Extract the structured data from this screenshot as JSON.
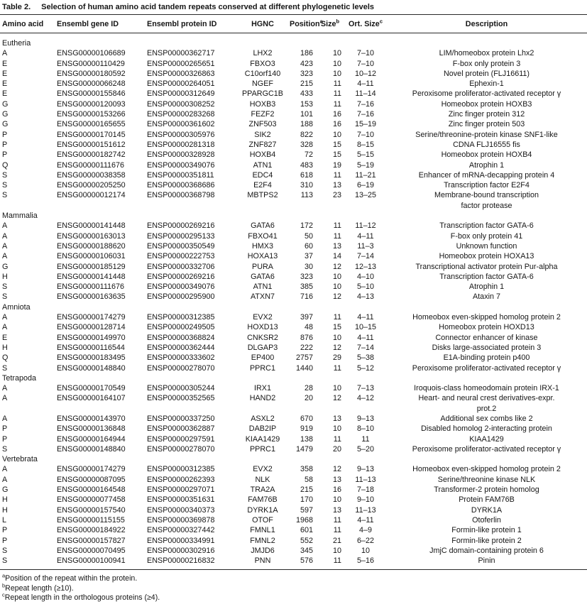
{
  "title": {
    "label": "Table 2.",
    "text": "Selection of human amino acid tandem repeats conserved at different phylogenetic levels"
  },
  "table": {
    "columns": [
      {
        "id": "amino-acid",
        "label": "Amino acid",
        "sup": ""
      },
      {
        "id": "gene-id",
        "label": "Ensembl gene ID",
        "sup": ""
      },
      {
        "id": "protein-id",
        "label": "Ensembl protein ID",
        "sup": ""
      },
      {
        "id": "hgnc",
        "label": "HGNC",
        "sup": ""
      },
      {
        "id": "position",
        "label": "Position",
        "sup": "a"
      },
      {
        "id": "size",
        "label": "Size",
        "sup": "b"
      },
      {
        "id": "ort-size",
        "label": "Ort. Size",
        "sup": "c"
      },
      {
        "id": "description",
        "label": "Description",
        "sup": ""
      }
    ],
    "sections": [
      {
        "name": "Eutheria",
        "rows": [
          [
            "A",
            "ENSG00000106689",
            "ENSP00000362717",
            "LHX2",
            "186",
            "10",
            "7–10",
            "LIM/homeobox protein Lhx2"
          ],
          [
            "E",
            "ENSG00000110429",
            "ENSP00000265651",
            "FBXO3",
            "423",
            "10",
            "7–10",
            "F-box only protein 3"
          ],
          [
            "E",
            "ENSG00000180592",
            "ENSP00000326863",
            "C10orf140",
            "323",
            "10",
            "10–12",
            "Novel protein (FLJ16611)"
          ],
          [
            "E",
            "ENSG00000066248",
            "ENSP00000264051",
            "NGEF",
            "215",
            "11",
            "4–11",
            "Ephexin-1"
          ],
          [
            "E",
            "ENSG00000155846",
            "ENSP00000312649",
            "PPARGC1B",
            "433",
            "11",
            "11–14",
            "Peroxisome proliferator-activated receptor γ"
          ],
          [
            "G",
            "ENSG00000120093",
            "ENSP00000308252",
            "HOXB3",
            "153",
            "11",
            "7–16",
            "Homeobox protein HOXB3"
          ],
          [
            "G",
            "ENSG00000153266",
            "ENSP00000283268",
            "FEZF2",
            "101",
            "16",
            "7–16",
            "Zinc finger protein 312"
          ],
          [
            "G",
            "ENSG00000165655",
            "ENSP00000361602",
            "ZNF503",
            "188",
            "16",
            "15–19",
            "Zinc finger protein 503"
          ],
          [
            "P",
            "ENSG00000170145",
            "ENSP00000305976",
            "SIK2",
            "822",
            "10",
            "7–10",
            "Serine/threonine-protein kinase SNF1-like"
          ],
          [
            "P",
            "ENSG00000151612",
            "ENSP00000281318",
            "ZNF827",
            "328",
            "15",
            "8–15",
            "CDNA FLJ16555 fis"
          ],
          [
            "P",
            "ENSG00000182742",
            "ENSP00000328928",
            "HOXB4",
            "72",
            "15",
            "5–15",
            "Homeobox protein HOXB4"
          ],
          [
            "Q",
            "ENSG00000111676",
            "ENSP00000349076",
            "ATN1",
            "483",
            "19",
            "5–19",
            "Atrophin 1"
          ],
          [
            "S",
            "ENSG00000038358",
            "ENSP00000351811",
            "EDC4",
            "618",
            "11",
            "11–21",
            "Enhancer of mRNA-decapping protein 4"
          ],
          [
            "S",
            "ENSG00000205250",
            "ENSP00000368686",
            "E2F4",
            "310",
            "13",
            "6–19",
            "Transcription factor E2F4"
          ],
          [
            "S",
            "ENSG00000012174",
            "ENSP00000368798",
            "MBTPS2",
            "113",
            "23",
            "13–25",
            "Membrane-bound transcription\nfactor protease"
          ]
        ]
      },
      {
        "name": "Mammalia",
        "rows": [
          [
            "A",
            "ENSG00000141448",
            "ENSP00000269216",
            "GATA6",
            "172",
            "11",
            "11–12",
            "Transcription factor GATA-6"
          ],
          [
            "A",
            "ENSG00000163013",
            "ENSP00000295133",
            "FBXO41",
            "50",
            "11",
            "4–11",
            "F-box only protein 41"
          ],
          [
            "A",
            "ENSG00000188620",
            "ENSP00000350549",
            "HMX3",
            "60",
            "13",
            "11–3",
            "Unknown function"
          ],
          [
            "A",
            "ENSG00000106031",
            "ENSP00000222753",
            "HOXA13",
            "37",
            "14",
            "7–14",
            "Homeobox protein HOXA13"
          ],
          [
            "G",
            "ENSG00000185129",
            "ENSP00000332706",
            "PURA",
            "30",
            "12",
            "12–13",
            "Transcriptional activator protein Pur-alpha"
          ],
          [
            "H",
            "ENSG00000141448",
            "ENSP00000269216",
            "GATA6",
            "323",
            "10",
            "4–10",
            "Transcription factor GATA-6"
          ],
          [
            "S",
            "ENSG00000111676",
            "ENSP00000349076",
            "ATN1",
            "385",
            "10",
            "5–10",
            "Atrophin 1"
          ],
          [
            "S",
            "ENSG00000163635",
            "ENSP00000295900",
            "ATXN7",
            "716",
            "12",
            "4–13",
            "Ataxin 7"
          ]
        ]
      },
      {
        "name": "Amniota",
        "rows": [
          [
            "A",
            "ENSG00000174279",
            "ENSP00000312385",
            "EVX2",
            "397",
            "11",
            "4–11",
            "Homeobox even-skipped homolog protein 2"
          ],
          [
            "A",
            "ENSG00000128714",
            "ENSP00000249505",
            "HOXD13",
            "48",
            "15",
            "10–15",
            "Homeobox protein HOXD13"
          ],
          [
            "E",
            "ENSG00000149970",
            "ENSP00000368824",
            "CNKSR2",
            "876",
            "10",
            "4–11",
            "Connector enhancer of kinase"
          ],
          [
            "H",
            "ENSG00000116544",
            "ENSP00000362444",
            "DLGAP3",
            "222",
            "12",
            "7–14",
            "Disks large-associated protein 3"
          ],
          [
            "Q",
            "ENSG00000183495",
            "ENSP00000333602",
            "EP400",
            "2757",
            "29",
            "5–38",
            "E1A-binding protein p400"
          ],
          [
            "S",
            "ENSG00000148840",
            "ENSP00000278070",
            "PPRC1",
            "1440",
            "11",
            "5–12",
            "Peroxisome proliferator-activated receptor γ"
          ]
        ]
      },
      {
        "name": "Tetrapoda",
        "rows": [
          [
            "A",
            "ENSG00000170549",
            "ENSP00000305244",
            "IRX1",
            "28",
            "10",
            "7–13",
            "Iroquois-class homeodomain protein IRX-1"
          ],
          [
            "A",
            "ENSG00000164107",
            "ENSP00000352565",
            "HAND2",
            "20",
            "12",
            "4–12",
            "Heart- and neural crest derivatives-expr.\nprot.2"
          ],
          [
            "A",
            "ENSG00000143970",
            "ENSP00000337250",
            "ASXL2",
            "670",
            "13",
            "9–13",
            "Additional sex combs like 2"
          ],
          [
            "P",
            "ENSG00000136848",
            "ENSP00000362887",
            "DAB2IP",
            "919",
            "10",
            "8–10",
            "Disabled homolog 2-interacting protein"
          ],
          [
            "P",
            "ENSG00000164944",
            "ENSP00000297591",
            "KIAA1429",
            "138",
            "11",
            "11",
            "KIAA1429"
          ],
          [
            "S",
            "ENSG00000148840",
            "ENSP00000278070",
            "PPRC1",
            "1479",
            "20",
            "5–20",
            "Peroxisome proliferator-activated receptor γ"
          ]
        ]
      },
      {
        "name": "Vertebrata",
        "rows": [
          [
            "A",
            "ENSG00000174279",
            "ENSP00000312385",
            "EVX2",
            "358",
            "12",
            "9–13",
            "Homeobox even-skipped homolog protein 2"
          ],
          [
            "A",
            "ENSG00000087095",
            "ENSP00000262393",
            "NLK",
            "58",
            "13",
            "11–13",
            "Serine/threonine kinase NLK"
          ],
          [
            "G",
            "ENSG00000164548",
            "ENSP00000297071",
            "TRA2A",
            "215",
            "16",
            "7–18",
            "Transformer-2 protein homolog"
          ],
          [
            "H",
            "ENSG00000077458",
            "ENSP00000351631",
            "FAM76B",
            "170",
            "10",
            "9–10",
            "Protein FAM76B"
          ],
          [
            "H",
            "ENSG00000157540",
            "ENSP00000340373",
            "DYRK1A",
            "597",
            "13",
            "11–13",
            "DYRK1A"
          ],
          [
            "L",
            "ENSG00000115155",
            "ENSP00000369878",
            "OTOF",
            "1968",
            "11",
            "4–11",
            "Otoferlin"
          ],
          [
            "P",
            "ENSG00000184922",
            "ENSP00000327442",
            "FMNL1",
            "601",
            "11",
            "4–9",
            "Formin-like protein 1"
          ],
          [
            "P",
            "ENSG00000157827",
            "ENSP00000334991",
            "FMNL2",
            "552",
            "21",
            "6–22",
            "Formin-like protein 2"
          ],
          [
            "S",
            "ENSG00000070495",
            "ENSP00000302916",
            "JMJD6",
            "345",
            "10",
            "10",
            "JmjC domain-containing protein 6"
          ],
          [
            "S",
            "ENSG00000100941",
            "ENSP00000216832",
            "PNN",
            "576",
            "11",
            "5–16",
            "Pinin"
          ]
        ]
      }
    ]
  },
  "footnotes": [
    {
      "sup": "a",
      "text": "Position of the repeat within the protein."
    },
    {
      "sup": "b",
      "text": "Repeat length (≥10)."
    },
    {
      "sup": "c",
      "text": "Repeat length in the orthologous proteins (≥4)."
    }
  ]
}
